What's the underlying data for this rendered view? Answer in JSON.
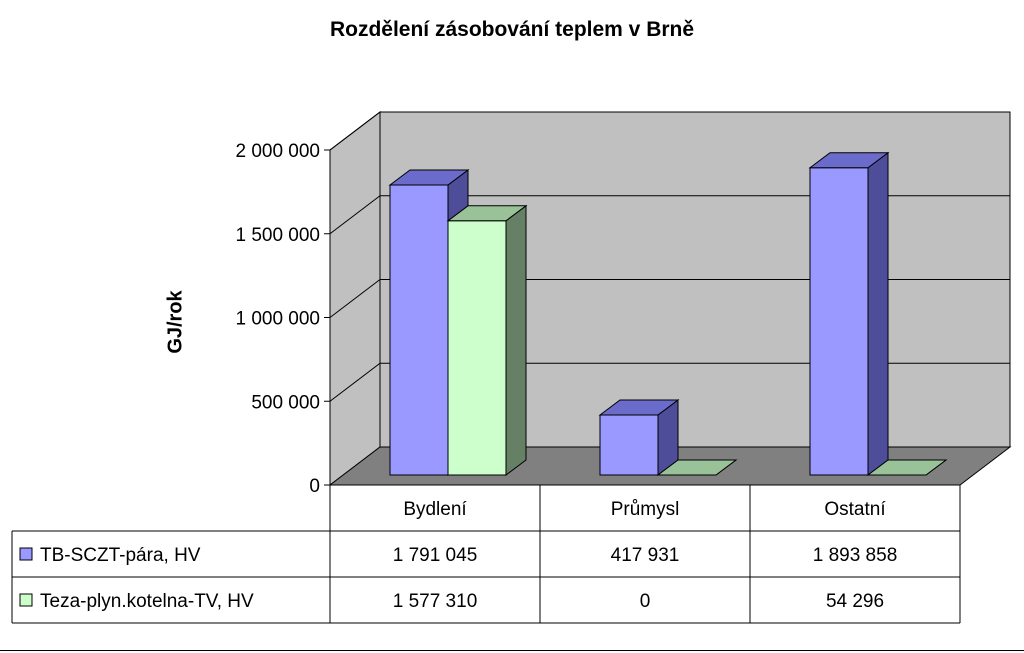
{
  "chart_data": {
    "type": "bar",
    "title": "Rozdělení zásobování teplem v Brně",
    "ylabel": "GJ/rok",
    "xlabel": "",
    "categories": [
      "Bydlení",
      "Průmysl",
      "Ostatní"
    ],
    "series": [
      {
        "name": "TB-SCZT-pára, HV",
        "values": [
          1791045,
          417931,
          1893858
        ],
        "value_labels": [
          "1 791 045",
          "417 931",
          "1 893 858"
        ],
        "color": "#9999ff",
        "side_color": "#4d4d99",
        "top_color": "#6b6bcc"
      },
      {
        "name": "Teza-plyn.kotelna-TV, HV",
        "values": [
          1577310,
          0,
          54296
        ],
        "value_labels": [
          "1 577 310",
          "0",
          "54 296"
        ],
        "color": "#ccffcc",
        "side_color": "#668066",
        "top_color": "#99c299"
      }
    ],
    "ylim": [
      0,
      2000000
    ],
    "yticks": [
      0,
      500000,
      1000000,
      1500000,
      2000000
    ],
    "ytick_labels": [
      "0",
      "500 000",
      "1 000 000",
      "1 500 000",
      "2 000 000"
    ],
    "grid": true,
    "legend": "data-table",
    "wall_color": "#c0c0c0",
    "floor_color": "#808080"
  }
}
